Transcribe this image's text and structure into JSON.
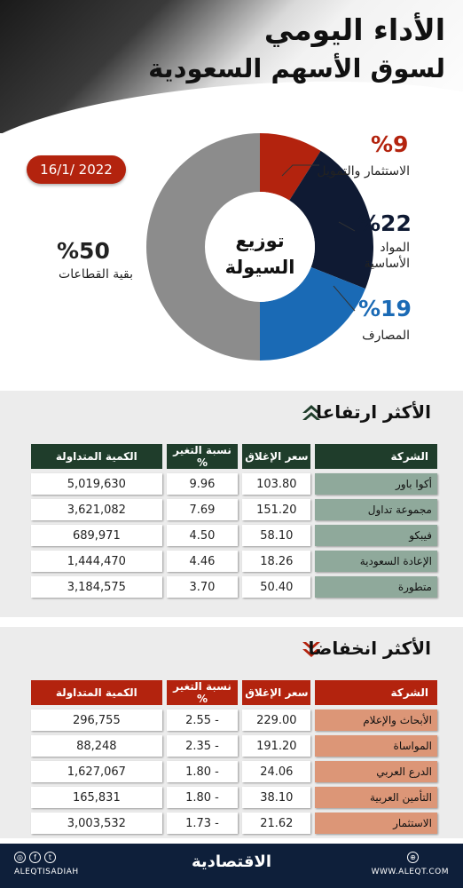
{
  "header": {
    "title_line1": "الأداء اليومي",
    "title_line2": "لسوق الأسهم السعودية"
  },
  "date": "16/1/ 2022",
  "chart_data": {
    "type": "pie",
    "title": "توزيع السيولة",
    "slices": [
      {
        "label": "الاستثمار والتمويل",
        "pct_text": "%9",
        "value": 9,
        "color": "#b3230e"
      },
      {
        "label": "المواد الأساسية",
        "pct_text": "%22",
        "value": 22,
        "color": "#0f1a33"
      },
      {
        "label": "المصارف",
        "pct_text": "%19",
        "value": 19,
        "color": "#1a6ab5"
      },
      {
        "label": "بقية القطاعات",
        "pct_text": "%50",
        "value": 50,
        "color": "#8c8c8c"
      }
    ],
    "center_line1": "توزيع",
    "center_line2": "السيولة"
  },
  "colors": {
    "up_header": "#1f3d2b",
    "down_header": "#b3230e",
    "up_name": "#8fa99b",
    "down_name": "#dc9677"
  },
  "gainers": {
    "title": "الأكثر ارتفاعا",
    "columns": [
      "الشركة",
      "سعر الإغلاق",
      "نسبة التغير %",
      "الكمية المتداولة"
    ],
    "rows": [
      {
        "company": "أكوا باور",
        "close": "103.80",
        "change": "9.96",
        "volume": "5,019,630"
      },
      {
        "company": "مجموعة تداول",
        "close": "151.20",
        "change": "7.69",
        "volume": "3,621,082"
      },
      {
        "company": "فيبكو",
        "close": "58.10",
        "change": "4.50",
        "volume": "689,971"
      },
      {
        "company": "الإعادة السعودية",
        "close": "18.26",
        "change": "4.46",
        "volume": "1,444,470"
      },
      {
        "company": "متطورة",
        "close": "50.40",
        "change": "3.70",
        "volume": "3,184,575"
      }
    ]
  },
  "losers": {
    "title": "الأكثر انخفاضا",
    "columns": [
      "الشركة",
      "سعر الإغلاق",
      "نسبة التغير %",
      "الكمية المتداولة"
    ],
    "rows": [
      {
        "company": "الأبحاث والإعلام",
        "close": "229.00",
        "change": "2.55 -",
        "volume": "296,755"
      },
      {
        "company": "المواساة",
        "close": "191.20",
        "change": "2.35 -",
        "volume": "88,248"
      },
      {
        "company": "الدرع العربي",
        "close": "24.06",
        "change": "1.80 -",
        "volume": "1,627,067"
      },
      {
        "company": "التأمين العربية",
        "close": "38.10",
        "change": "1.80 -",
        "volume": "165,831"
      },
      {
        "company": "الاستثمار",
        "close": "21.62",
        "change": "1.73 -",
        "volume": "3,003,532"
      }
    ]
  },
  "footer": {
    "handle": "ALEQTISADIAH",
    "logo": "الاقتصادية",
    "site": "WWW.ALEQT.COM",
    "icons": [
      "instagram-icon",
      "facebook-icon",
      "twitter-icon",
      "globe-icon"
    ]
  }
}
